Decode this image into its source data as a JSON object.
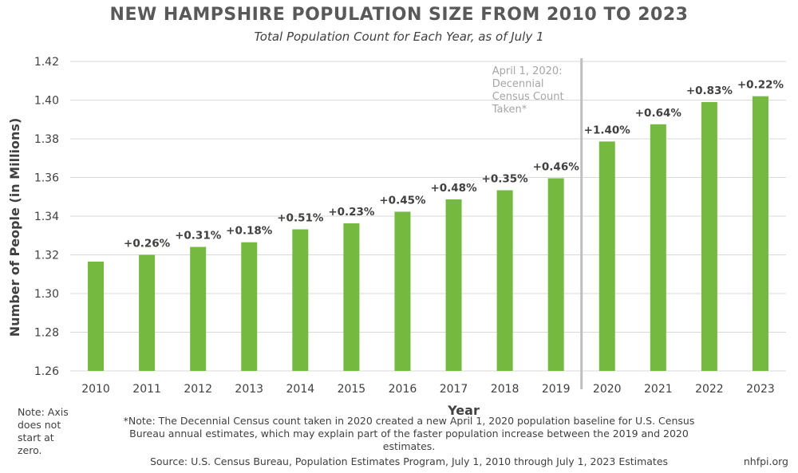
{
  "chart_data": {
    "type": "bar",
    "title": "NEW HAMPSHIRE POPULATION SIZE FROM 2010 TO 2023",
    "subtitle": "Total Population Count for Each Year, as of July 1",
    "xlabel": "Year",
    "ylabel": "Number of People (in Millions)",
    "ylim": [
      1.26,
      1.42
    ],
    "yticks": [
      "1.26",
      "1.28",
      "1.30",
      "1.32",
      "1.34",
      "1.36",
      "1.38",
      "1.40",
      "1.42"
    ],
    "categories": [
      "2010",
      "2011",
      "2012",
      "2013",
      "2014",
      "2015",
      "2016",
      "2017",
      "2018",
      "2019",
      "2020",
      "2021",
      "2022",
      "2023"
    ],
    "values": [
      1.3165,
      1.32,
      1.3241,
      1.3265,
      1.3332,
      1.3363,
      1.3423,
      1.3487,
      1.3534,
      1.3596,
      1.3786,
      1.3875,
      1.399,
      1.402
    ],
    "data_labels": [
      "",
      "+0.26%",
      "+0.31%",
      "+0.18%",
      "+0.51%",
      "+0.23%",
      "+0.45%",
      "+0.48%",
      "+0.35%",
      "+0.46%",
      "+1.40%",
      "+0.64%",
      "+0.83%",
      "+0.22%"
    ],
    "grid": true,
    "annotation": {
      "after_category": "2019",
      "lines": [
        "April 1, 2020:",
        "Decennial",
        "Census Count",
        "Taken*"
      ]
    },
    "bar_color": "#76b940"
  },
  "notes": {
    "axis_note": "Note: Axis\ndoes not\nstart at\nzero.",
    "footnote": "*Note: The Decennial Census count taken in 2020 created a new April 1, 2020 population baseline for U.S. Census Bureau annual estimates, which may explain part of the faster population increase between the 2019 and 2020 estimates.",
    "source": "Source: U.S. Census Bureau, Population Estimates Program, July 1, 2010 through July 1, 2023 Estimates",
    "site": "nhfpi.org"
  }
}
